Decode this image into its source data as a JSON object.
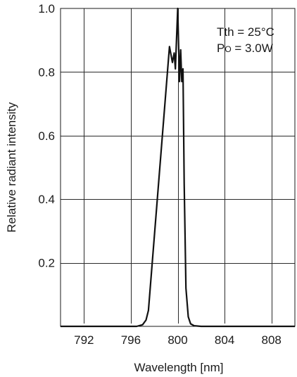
{
  "chart_data": {
    "type": "line",
    "title": "",
    "xlabel": "Wavelength [nm]",
    "ylabel": "Relative radiant intensity",
    "xlim": [
      790,
      810
    ],
    "ylim": [
      0,
      1.0
    ],
    "xticks": [
      792,
      796,
      800,
      804,
      808
    ],
    "xtick_labels": [
      "792",
      "796",
      "800",
      "804",
      "808"
    ],
    "yticks": [
      0.2,
      0.4,
      0.6,
      0.8,
      1.0
    ],
    "ytick_labels": [
      "0.2",
      "0.4",
      "0.6",
      "0.8",
      "1.0"
    ],
    "grid": true,
    "annotations": {
      "line1": "Tth = 25°C",
      "line2_prefix": "P",
      "line2_sub": "O",
      "line2_suffix": " = 3.0W"
    },
    "series": [
      {
        "x": [
          790,
          796.5,
          797.0,
          797.3,
          797.5,
          799.3,
          799.55,
          799.7,
          799.8,
          800.0,
          800.15,
          800.25,
          800.35,
          800.45,
          800.55,
          800.7,
          800.9,
          801.1,
          801.4,
          802.0,
          810
        ],
        "y": [
          0,
          0,
          0.005,
          0.02,
          0.05,
          0.88,
          0.83,
          0.86,
          0.81,
          1.0,
          0.77,
          0.87,
          0.77,
          0.81,
          0.45,
          0.12,
          0.03,
          0.008,
          0.002,
          0,
          0
        ]
      }
    ]
  }
}
